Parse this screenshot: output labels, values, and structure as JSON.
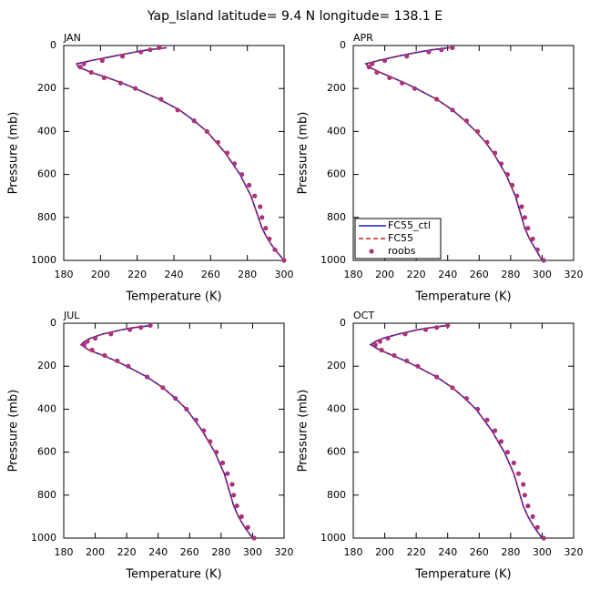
{
  "title": "Yap_Island  latitude= 9.4 N longitude= 138.1 E",
  "chart_data": [
    {
      "type": "line",
      "title": "JAN",
      "xlabel": "Temperature (K)",
      "ylabel": "Pressure (mb)",
      "xlim": [
        180,
        300
      ],
      "xticks": [
        180,
        200,
        220,
        240,
        260,
        280,
        300
      ],
      "ylim": [
        0,
        1000
      ],
      "yticks": [
        0,
        200,
        400,
        600,
        800,
        1000
      ],
      "y_inverted": true,
      "y": [
        10,
        20,
        30,
        50,
        70,
        85,
        100,
        125,
        150,
        175,
        200,
        250,
        300,
        350,
        400,
        450,
        500,
        550,
        600,
        650,
        700,
        750,
        800,
        850,
        900,
        950,
        1000
      ],
      "series": [
        {
          "name": "FC55_ctl",
          "color": "#1c1ccc",
          "style": "solid",
          "x": [
            236,
            226,
            219,
            207,
            195,
            187,
            188,
            195,
            204,
            212,
            219,
            232,
            243,
            251,
            258,
            263,
            268,
            272,
            276,
            279,
            282,
            284,
            286,
            288,
            291,
            295,
            300
          ]
        },
        {
          "name": "FC55",
          "color": "#cc2020",
          "style": "dashed",
          "x": [
            235,
            225,
            219,
            206,
            195,
            187,
            188,
            195,
            204,
            212,
            219,
            232,
            243,
            251,
            258,
            263,
            268,
            272,
            276,
            279,
            282,
            284,
            286,
            288,
            291,
            295,
            300
          ]
        },
        {
          "name": "roobs",
          "color": "#a8347c",
          "style": "markers",
          "x": [
            232,
            227,
            222,
            212,
            201,
            191,
            189,
            195,
            202,
            211,
            219,
            233,
            242,
            251,
            258,
            264,
            269,
            273,
            277,
            281,
            284,
            287,
            288,
            290,
            292,
            295,
            300
          ]
        }
      ]
    },
    {
      "type": "line",
      "title": "APR",
      "xlabel": "Temperature (K)",
      "ylabel": "Pressure (mb)",
      "xlim": [
        180,
        320
      ],
      "xticks": [
        180,
        200,
        220,
        240,
        260,
        280,
        300,
        320
      ],
      "ylim": [
        0,
        1000
      ],
      "yticks": [
        0,
        200,
        400,
        600,
        800,
        1000
      ],
      "y_inverted": true,
      "legend": "lower left",
      "y": [
        10,
        20,
        30,
        50,
        70,
        85,
        100,
        125,
        150,
        175,
        200,
        250,
        300,
        350,
        400,
        450,
        500,
        550,
        600,
        650,
        700,
        750,
        800,
        850,
        900,
        950,
        1000
      ],
      "series": [
        {
          "name": "FC55_ctl",
          "color": "#1c1ccc",
          "style": "solid",
          "x": [
            241,
            230,
            222,
            208,
            196,
            188,
            190,
            197,
            205,
            213,
            220,
            233,
            243,
            251,
            258,
            264,
            269,
            273,
            277,
            280,
            283,
            285,
            287,
            289,
            292,
            296,
            300
          ]
        },
        {
          "name": "FC55",
          "color": "#cc2020",
          "style": "dashed",
          "x": [
            242,
            231,
            222,
            208,
            196,
            188,
            190,
            197,
            205,
            213,
            220,
            233,
            243,
            251,
            258,
            264,
            269,
            273,
            277,
            280,
            283,
            285,
            287,
            289,
            292,
            296,
            300
          ]
        },
        {
          "name": "roobs",
          "color": "#a8347c",
          "style": "markers",
          "x": [
            243,
            236,
            228,
            214,
            200,
            192,
            190,
            195,
            203,
            211,
            219,
            233,
            243,
            252,
            259,
            265,
            270,
            274,
            278,
            281,
            284,
            287,
            289,
            291,
            294,
            297,
            301
          ]
        }
      ]
    },
    {
      "type": "line",
      "title": "JUL",
      "xlabel": "Temperature (K)",
      "ylabel": "Pressure (mb)",
      "xlim": [
        180,
        320
      ],
      "xticks": [
        180,
        200,
        220,
        240,
        260,
        280,
        300,
        320
      ],
      "ylim": [
        0,
        1000
      ],
      "yticks": [
        0,
        200,
        400,
        600,
        800,
        1000
      ],
      "y_inverted": true,
      "y": [
        10,
        20,
        30,
        50,
        70,
        85,
        100,
        125,
        150,
        175,
        200,
        250,
        300,
        350,
        400,
        450,
        500,
        550,
        600,
        650,
        700,
        750,
        800,
        850,
        900,
        950,
        1000
      ],
      "series": [
        {
          "name": "FC55_ctl",
          "color": "#1c1ccc",
          "style": "solid",
          "x": [
            236,
            225,
            217,
            205,
            197,
            193,
            191,
            196,
            205,
            213,
            220,
            233,
            243,
            251,
            258,
            263,
            268,
            272,
            276,
            279,
            282,
            284,
            286,
            288,
            291,
            295,
            300
          ]
        },
        {
          "name": "FC55",
          "color": "#cc2020",
          "style": "dashed",
          "x": [
            236,
            226,
            217,
            205,
            197,
            193,
            191,
            196,
            205,
            213,
            220,
            233,
            243,
            251,
            258,
            263,
            268,
            272,
            276,
            279,
            282,
            284,
            286,
            288,
            291,
            295,
            300
          ]
        },
        {
          "name": "roobs",
          "color": "#a8347c",
          "style": "markers",
          "x": [
            235,
            229,
            222,
            210,
            200,
            195,
            193,
            198,
            206,
            214,
            221,
            233,
            243,
            251,
            258,
            264,
            269,
            273,
            277,
            281,
            284,
            287,
            288,
            290,
            293,
            297,
            301
          ]
        }
      ]
    },
    {
      "type": "line",
      "title": "OCT",
      "xlabel": "Temperature (K)",
      "ylabel": "Pressure (mb)",
      "xlim": [
        180,
        320
      ],
      "xticks": [
        180,
        200,
        220,
        240,
        260,
        280,
        300,
        320
      ],
      "ylim": [
        0,
        1000
      ],
      "yticks": [
        0,
        200,
        400,
        600,
        800,
        1000
      ],
      "y_inverted": true,
      "y": [
        10,
        20,
        30,
        50,
        70,
        85,
        100,
        125,
        150,
        175,
        200,
        250,
        300,
        350,
        400,
        450,
        500,
        550,
        600,
        650,
        700,
        750,
        800,
        850,
        900,
        950,
        1000
      ],
      "series": [
        {
          "name": "FC55_ctl",
          "color": "#1c1ccc",
          "style": "solid",
          "x": [
            240,
            230,
            221,
            209,
            199,
            194,
            191,
            197,
            205,
            213,
            220,
            233,
            243,
            251,
            258,
            263,
            268,
            272,
            276,
            279,
            282,
            284,
            286,
            288,
            291,
            295,
            300
          ]
        },
        {
          "name": "FC55",
          "color": "#cc2020",
          "style": "dashed",
          "x": [
            240,
            230,
            222,
            209,
            199,
            194,
            191,
            197,
            205,
            213,
            220,
            233,
            243,
            251,
            258,
            263,
            268,
            272,
            276,
            279,
            282,
            284,
            286,
            288,
            291,
            295,
            300
          ]
        },
        {
          "name": "roobs",
          "color": "#a8347c",
          "style": "markers",
          "x": [
            240,
            233,
            226,
            213,
            202,
            197,
            194,
            198,
            206,
            214,
            221,
            233,
            243,
            252,
            259,
            265,
            270,
            274,
            278,
            282,
            285,
            288,
            289,
            291,
            294,
            297,
            301
          ]
        }
      ]
    }
  ]
}
